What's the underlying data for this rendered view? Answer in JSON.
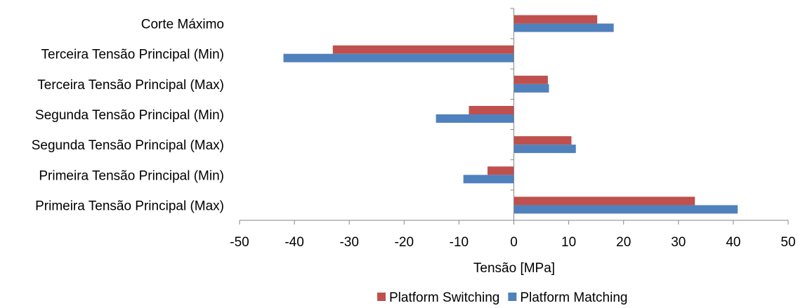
{
  "chart_data": {
    "type": "bar",
    "orientation": "horizontal",
    "title": "",
    "xlabel": "Tensão [MPa]",
    "ylabel": "",
    "xlim": [
      -50,
      50
    ],
    "xticks": [
      "-50",
      "-40",
      "-30",
      "-20",
      "-10",
      "0",
      "10",
      "20",
      "30",
      "40",
      "50"
    ],
    "categories": [
      "Corte Máximo",
      "Terceira Tensão Principal (Min)",
      "Terceira Tensão Principal (Max)",
      "Segunda Tensão Principal (Min)",
      "Segunda Tensão Principal (Max)",
      "Primeira Tensão Principal (Min)",
      "Primeira Tensão Principal (Max)"
    ],
    "series": [
      {
        "name": "Platform Switching",
        "color": "#c0504d",
        "values": [
          15.2,
          -33.0,
          6.2,
          -8.2,
          10.5,
          -4.8,
          33.0
        ]
      },
      {
        "name": "Platform Matching",
        "color": "#4f81bd",
        "values": [
          18.2,
          -42.0,
          6.4,
          -14.2,
          11.3,
          -9.2,
          40.8
        ]
      }
    ],
    "grid": false,
    "legend_position": "bottom"
  }
}
